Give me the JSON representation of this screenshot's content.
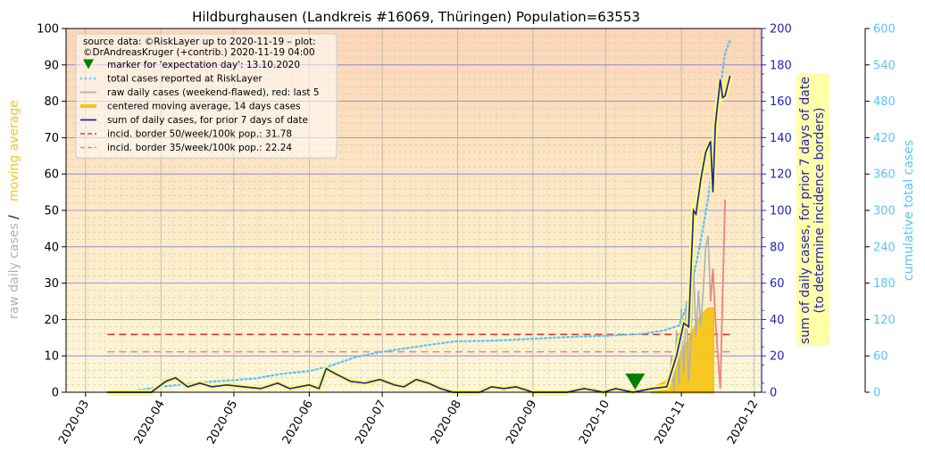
{
  "chart_data": {
    "type": "line",
    "title": "Hildburghausen (Landkreis #16069, Thüringen) Population=63553",
    "y_left_label_parts": [
      "raw daily cases",
      "/",
      "moving average"
    ],
    "y_right1_label": "sum of daily cases, for prior 7 days of date\n(to determine incidence borders)",
    "y_right2_label": "cumulative total cases",
    "x_ticks": [
      "2020-03",
      "2020-04",
      "2020-05",
      "2020-06",
      "2020-07",
      "2020-08",
      "2020-09",
      "2020-10",
      "2020-11",
      "2020-12"
    ],
    "y_left_ticks": [
      0,
      10,
      20,
      30,
      40,
      50,
      60,
      70,
      80,
      90,
      100
    ],
    "y_right1_ticks": [
      0,
      20,
      40,
      60,
      80,
      100,
      120,
      140,
      160,
      180,
      200
    ],
    "y_right2_ticks": [
      0,
      60,
      120,
      180,
      240,
      300,
      360,
      420,
      480,
      540,
      600
    ],
    "ylim_left": [
      0,
      100
    ],
    "ylim_right1": [
      0,
      200
    ],
    "ylim_right2": [
      0,
      600
    ],
    "legend": [
      {
        "label": "source data: ©RiskLayer up to 2020-11-19 – plot:",
        "type": "text"
      },
      {
        "label": "©DrAndreasKruger (+contrib.) 2020-11-19 04:00",
        "type": "text"
      },
      {
        "label": "marker for 'expectation day': 13.10.2020",
        "type": "marker",
        "color": "#008000"
      },
      {
        "label": "total cases reported at RiskLayer",
        "type": "dotted",
        "color": "#5cc3f5"
      },
      {
        "label": "raw daily cases (weekend-flawed), red: last 5",
        "type": "line",
        "color": "#b0b0b0"
      },
      {
        "label": "centered moving average, 14 days cases",
        "type": "thick",
        "color": "#f5c518"
      },
      {
        "label": "sum of daily cases, for prior 7 days of date",
        "type": "line",
        "color": "#2323b4"
      },
      {
        "label": "incid. border 50/week/100k pop.: 31.78",
        "type": "dashed",
        "color": "#e03c31"
      },
      {
        "label": "incid. border 35/week/100k pop.: 22.24",
        "type": "dashed",
        "color": "#f08080"
      }
    ],
    "incidence_border_50": 31.78,
    "incidence_border_35": 22.24,
    "expectation_day": "2020-10-13",
    "series": [
      {
        "name": "sum of daily cases, for prior 7 days of date",
        "axis": "right1",
        "points": [
          [
            "2020-03-10",
            0
          ],
          [
            "2020-03-28",
            0
          ],
          [
            "2020-04-03",
            6
          ],
          [
            "2020-04-07",
            8
          ],
          [
            "2020-04-12",
            3
          ],
          [
            "2020-04-17",
            5
          ],
          [
            "2020-04-22",
            3
          ],
          [
            "2020-04-28",
            4
          ],
          [
            "2020-05-05",
            3
          ],
          [
            "2020-05-12",
            2
          ],
          [
            "2020-05-19",
            5
          ],
          [
            "2020-05-24",
            2
          ],
          [
            "2020-06-01",
            4
          ],
          [
            "2020-06-05",
            2
          ],
          [
            "2020-06-08",
            13
          ],
          [
            "2020-06-12",
            10
          ],
          [
            "2020-06-18",
            6
          ],
          [
            "2020-06-24",
            5
          ],
          [
            "2020-06-30",
            7
          ],
          [
            "2020-07-06",
            4
          ],
          [
            "2020-07-10",
            3
          ],
          [
            "2020-07-15",
            7
          ],
          [
            "2020-07-20",
            5
          ],
          [
            "2020-07-25",
            2
          ],
          [
            "2020-07-30",
            0
          ],
          [
            "2020-08-10",
            0
          ],
          [
            "2020-08-15",
            3
          ],
          [
            "2020-08-20",
            2
          ],
          [
            "2020-08-25",
            3
          ],
          [
            "2020-09-01",
            0
          ],
          [
            "2020-09-15",
            0
          ],
          [
            "2020-09-22",
            2
          ],
          [
            "2020-09-30",
            0
          ],
          [
            "2020-10-05",
            2
          ],
          [
            "2020-10-12",
            0
          ],
          [
            "2020-10-20",
            2
          ],
          [
            "2020-10-26",
            3
          ],
          [
            "2020-10-30",
            20
          ],
          [
            "2020-11-02",
            38
          ],
          [
            "2020-11-04",
            36
          ],
          [
            "2020-11-06",
            100
          ],
          [
            "2020-11-07",
            98
          ],
          [
            "2020-11-09",
            117
          ],
          [
            "2020-11-11",
            132
          ],
          [
            "2020-11-13",
            138
          ],
          [
            "2020-11-14",
            110
          ],
          [
            "2020-11-15",
            147
          ],
          [
            "2020-11-17",
            172
          ],
          [
            "2020-11-18",
            162
          ],
          [
            "2020-11-19",
            163
          ],
          [
            "2020-11-21",
            174
          ]
        ]
      },
      {
        "name": "total cases reported at RiskLayer",
        "axis": "right2",
        "points": [
          [
            "2020-03-10",
            0
          ],
          [
            "2020-03-20",
            2
          ],
          [
            "2020-04-01",
            9
          ],
          [
            "2020-04-10",
            13
          ],
          [
            "2020-04-20",
            17
          ],
          [
            "2020-05-01",
            20
          ],
          [
            "2020-05-10",
            23
          ],
          [
            "2020-05-20",
            30
          ],
          [
            "2020-06-01",
            35
          ],
          [
            "2020-06-10",
            44
          ],
          [
            "2020-06-20",
            58
          ],
          [
            "2020-06-30",
            66
          ],
          [
            "2020-07-10",
            72
          ],
          [
            "2020-07-20",
            78
          ],
          [
            "2020-07-31",
            84
          ],
          [
            "2020-08-15",
            85
          ],
          [
            "2020-08-31",
            88
          ],
          [
            "2020-09-15",
            91
          ],
          [
            "2020-09-30",
            93
          ],
          [
            "2020-10-15",
            96
          ],
          [
            "2020-10-25",
            102
          ],
          [
            "2020-10-31",
            110
          ],
          [
            "2020-11-03",
            140
          ],
          [
            "2020-11-06",
            190
          ],
          [
            "2020-11-09",
            250
          ],
          [
            "2020-11-12",
            320
          ],
          [
            "2020-11-15",
            420
          ],
          [
            "2020-11-17",
            500
          ],
          [
            "2020-11-19",
            560
          ],
          [
            "2020-11-21",
            580
          ]
        ]
      },
      {
        "name": "raw daily cases (weekend-flawed), red: last 5",
        "axis": "left",
        "points": [
          [
            "2020-10-25",
            1
          ],
          [
            "2020-10-27",
            3
          ],
          [
            "2020-10-28",
            10
          ],
          [
            "2020-10-29",
            0
          ],
          [
            "2020-10-30",
            17
          ],
          [
            "2020-10-31",
            2
          ],
          [
            "2020-11-01",
            23
          ],
          [
            "2020-11-02",
            5
          ],
          [
            "2020-11-03",
            25
          ],
          [
            "2020-11-04",
            3
          ],
          [
            "2020-11-05",
            15
          ],
          [
            "2020-11-06",
            35
          ],
          [
            "2020-11-07",
            15
          ],
          [
            "2020-11-08",
            28
          ],
          [
            "2020-11-09",
            18
          ],
          [
            "2020-11-10",
            28
          ],
          [
            "2020-11-11",
            40
          ],
          [
            "2020-11-12",
            43
          ],
          [
            "2020-11-13",
            25
          ]
        ]
      },
      {
        "name": "raw daily cases, last 5 (red)",
        "axis": "left",
        "points": [
          [
            "2020-11-13",
            25
          ],
          [
            "2020-11-14",
            34
          ],
          [
            "2020-11-15",
            20
          ],
          [
            "2020-11-17",
            1
          ],
          [
            "2020-11-19",
            53
          ]
        ]
      },
      {
        "name": "centered moving average, 14 days cases",
        "axis": "left",
        "points": [
          [
            "2020-10-20",
            1
          ],
          [
            "2020-10-26",
            3
          ],
          [
            "2020-10-30",
            8
          ],
          [
            "2020-11-03",
            13
          ],
          [
            "2020-11-06",
            17
          ],
          [
            "2020-11-09",
            21
          ],
          [
            "2020-11-12",
            23
          ],
          [
            "2020-11-14",
            23
          ]
        ]
      }
    ]
  }
}
